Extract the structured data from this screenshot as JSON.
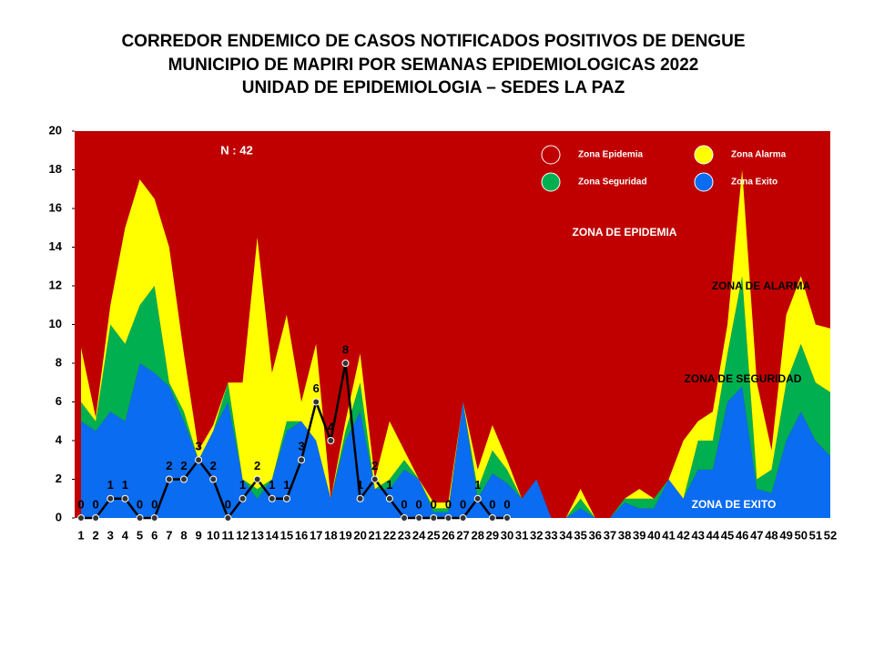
{
  "chart_data": {
    "type": "stacked_area",
    "title": [
      "CORREDOR ENDEMICO DE CASOS NOTIFICADOS POSITIVOS DE DENGUE",
      "MUNICIPIO DE MAPIRI POR SEMANAS EPIDEMIOLOGICAS 2022",
      "UNIDAD DE EPIDEMIOLOGIA – SEDES LA PAZ"
    ],
    "annotations": [
      "N : 42",
      "ZONA DE EPIDEMIA",
      "ZONA DE ALARMA",
      "ZONA DE  SEGURIDAD",
      "ZONA DE  EXITO"
    ],
    "categories": [
      1,
      2,
      3,
      4,
      5,
      6,
      7,
      8,
      9,
      10,
      11,
      12,
      13,
      14,
      15,
      16,
      17,
      18,
      19,
      20,
      21,
      22,
      23,
      24,
      25,
      26,
      27,
      28,
      29,
      30,
      31,
      32,
      33,
      34,
      35,
      36,
      37,
      38,
      39,
      40,
      41,
      42,
      43,
      44,
      45,
      46,
      47,
      48,
      49,
      50,
      51,
      52
    ],
    "background": {
      "name": "Zona Epidemia",
      "color": "#c00000"
    },
    "series": [
      {
        "name": "Zona Exito",
        "color": "#0a6cf0",
        "values": [
          5,
          4.5,
          5.5,
          5,
          8,
          7.5,
          6.8,
          5,
          3,
          4.5,
          6,
          2,
          1,
          2,
          4.5,
          5,
          4,
          1,
          4,
          5.5,
          1.5,
          1.5,
          2.5,
          2,
          0.3,
          0.3,
          6,
          1,
          2.3,
          1.8,
          1,
          2,
          0,
          0,
          0.5,
          0,
          0,
          0.8,
          0.5,
          0.5,
          2,
          1,
          2.5,
          2.5,
          6,
          6.8,
          1.5,
          1.3,
          4,
          5.5,
          4,
          3.2
        ]
      },
      {
        "name": "Zona Seguridad",
        "color": "#00b050",
        "values": [
          1,
          0.5,
          4.5,
          4,
          3,
          4.5,
          0.2,
          0.5,
          0,
          0,
          1,
          0,
          0.5,
          0,
          0.5,
          0,
          0,
          0,
          0.5,
          1.5,
          0,
          0.5,
          0.5,
          0,
          0.2,
          0.2,
          0,
          0.5,
          1.2,
          0.7,
          0,
          0,
          0,
          0,
          0.5,
          0,
          0,
          0.2,
          0.5,
          0.5,
          0,
          0,
          1.5,
          1.5,
          2.5,
          5.7,
          0.5,
          1.2,
          3,
          3.5,
          3,
          3.3
        ]
      },
      {
        "name": "Zona Alarma",
        "color": "#ffff00",
        "values": [
          2.8,
          0.2,
          1,
          6,
          6.5,
          4.5,
          7,
          3,
          0.5,
          0.3,
          0,
          5,
          13,
          5.5,
          5.5,
          1,
          5,
          0,
          0.5,
          1.5,
          0.5,
          3,
          0.5,
          0,
          0.3,
          0.3,
          0,
          1,
          1.3,
          0.5,
          0,
          0,
          0,
          0,
          0.5,
          0,
          0,
          0,
          0.5,
          0,
          0,
          3,
          1,
          1.5,
          1.5,
          5.5,
          5,
          1,
          3.5,
          3.5,
          3,
          3.3
        ]
      }
    ],
    "cases": {
      "color": "#000000",
      "values": [
        0,
        0,
        1,
        1,
        0,
        0,
        2,
        2,
        3,
        2,
        0,
        1,
        2,
        1,
        1,
        3,
        6,
        4,
        8,
        1,
        2,
        1,
        0,
        0,
        0,
        0,
        0,
        1,
        0,
        0,
        null,
        null,
        null,
        null,
        null,
        null,
        null,
        null,
        null,
        null,
        null,
        null,
        null,
        null,
        null,
        null,
        null,
        null,
        null,
        null,
        null,
        null
      ]
    },
    "ylim": [
      0,
      20
    ],
    "yticks": [
      0,
      2,
      4,
      6,
      8,
      10,
      12,
      14,
      16,
      18,
      20
    ]
  }
}
